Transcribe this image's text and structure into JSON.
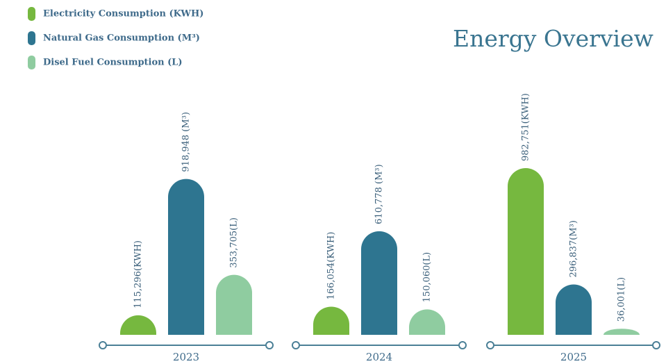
{
  "chart_data": {
    "type": "bar",
    "title": "Energy Overview",
    "categories": [
      "2023",
      "2024",
      "2025"
    ],
    "series": [
      {
        "name": "Electricity Consumption (KWH)",
        "color": "#76b83f",
        "values": [
          115296,
          166054,
          982751
        ],
        "value_labels": [
          "115,296(KWH)",
          "166,054(KWH)",
          "982,751(KWH)"
        ]
      },
      {
        "name": "Natural Gas Consumption (M³)",
        "color": "#2e7590",
        "values": [
          918948,
          610778,
          296837
        ],
        "value_labels": [
          "918,948 (M³)",
          "610,778 (M³)",
          "296,837(M³)"
        ]
      },
      {
        "name": "Disel Fuel Consumption (L)",
        "color": "#8fcca0",
        "values": [
          353705,
          150060,
          36001
        ],
        "value_labels": [
          "353,705(L)",
          "150,060(L)",
          "36,001(L)"
        ]
      }
    ],
    "legend": "top-left"
  }
}
